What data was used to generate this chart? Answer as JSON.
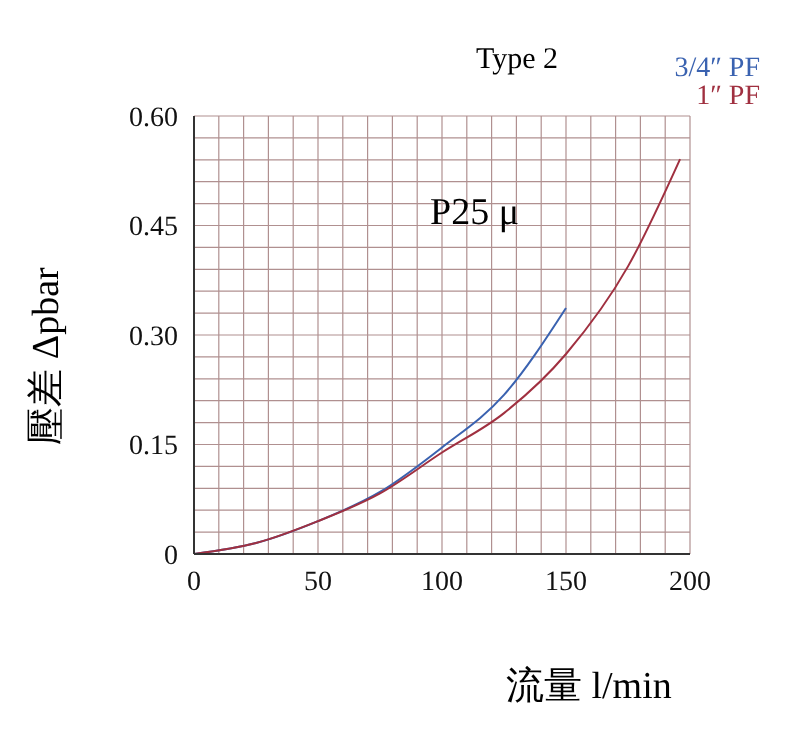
{
  "chart_data": {
    "type": "line",
    "title": "Type 2",
    "xlabel": "流量  l/min",
    "ylabel": "壓差  Δpbar",
    "annotations": [
      "P25 μ"
    ],
    "series": [
      {
        "name": "3/4″  PF",
        "color": "#3a62b0",
        "x": [
          0,
          25,
          50,
          75,
          100,
          125,
          150
        ],
        "values": [
          0,
          0.015,
          0.045,
          0.085,
          0.146,
          0.218,
          0.337
        ]
      },
      {
        "name": "1″  PF",
        "color": "#a03040",
        "x": [
          0,
          25,
          50,
          75,
          100,
          125,
          150,
          175,
          196
        ],
        "values": [
          0,
          0.015,
          0.045,
          0.083,
          0.139,
          0.193,
          0.274,
          0.394,
          0.541
        ]
      }
    ],
    "xlim": [
      0,
      200
    ],
    "xticks": [
      0,
      {
        "value": 10,
        "label": null
      },
      {
        "value": 20,
        "label": null
      },
      {
        "value": 30,
        "label": null
      },
      {
        "value": 40,
        "label": null
      },
      50,
      {
        "value": 60,
        "label": null
      },
      {
        "value": 70,
        "label": null
      },
      {
        "value": 80,
        "label": null
      },
      {
        "value": 90,
        "label": null
      },
      100,
      {
        "value": 110,
        "label": null
      },
      {
        "value": 120,
        "label": null
      },
      {
        "value": 130,
        "label": null
      },
      {
        "value": 140,
        "label": null
      },
      150,
      {
        "value": 160,
        "label": null
      },
      {
        "value": 170,
        "label": null
      },
      {
        "value": 180,
        "label": null
      },
      {
        "value": 190,
        "label": null
      },
      200
    ],
    "ylim": [
      0,
      0.6
    ],
    "yticks": [
      {
        "value": 0,
        "label": "0"
      },
      {
        "value": 0.03,
        "label": null
      },
      {
        "value": 0.06,
        "label": null
      },
      {
        "value": 0.09,
        "label": null
      },
      {
        "value": 0.12,
        "label": null
      },
      {
        "value": 0.15,
        "label": "0.15"
      },
      {
        "value": 0.18,
        "label": null
      },
      {
        "value": 0.21,
        "label": null
      },
      {
        "value": 0.24,
        "label": null
      },
      {
        "value": 0.27,
        "label": null
      },
      {
        "value": 0.3,
        "label": "0.30"
      },
      {
        "value": 0.33,
        "label": null
      },
      {
        "value": 0.36,
        "label": null
      },
      {
        "value": 0.39,
        "label": null
      },
      {
        "value": 0.42,
        "label": null
      },
      {
        "value": 0.45,
        "label": "0.45"
      },
      {
        "value": 0.48,
        "label": null
      },
      {
        "value": 0.51,
        "label": null
      },
      {
        "value": 0.54,
        "label": null
      },
      {
        "value": 0.57,
        "label": null
      },
      {
        "value": 0.6,
        "label": "0.60"
      }
    ],
    "grid": true,
    "legend": "top right",
    "marker": "none",
    "line_style": "solid"
  }
}
